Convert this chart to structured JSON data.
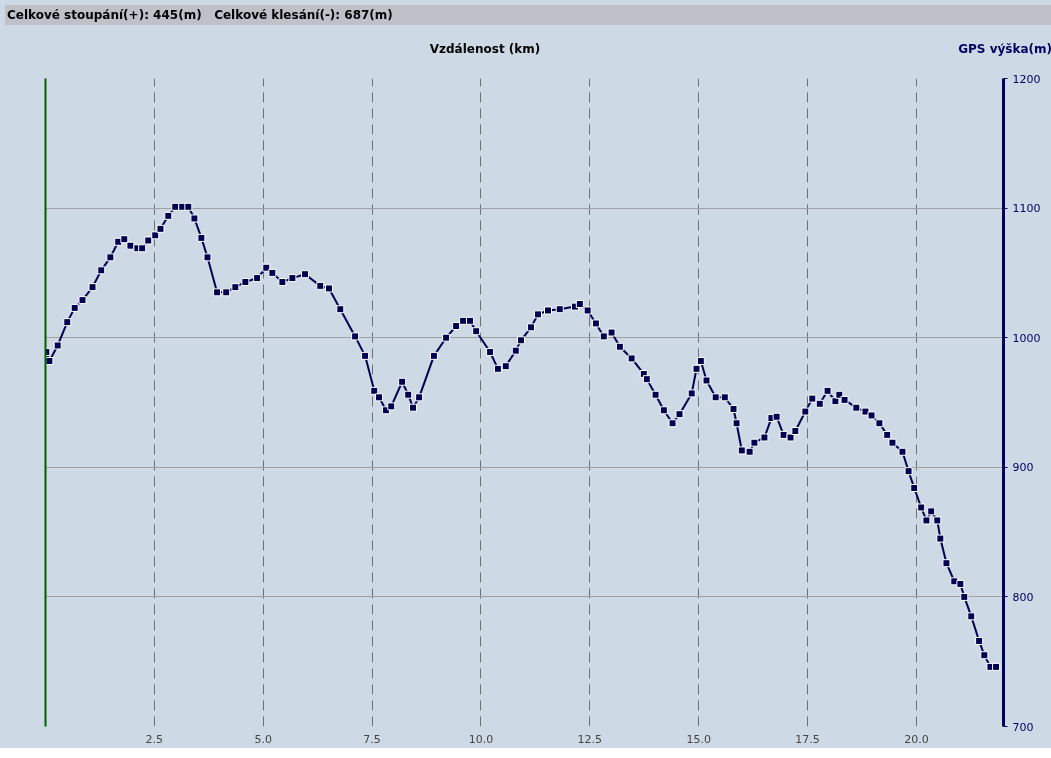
{
  "chart_data": {
    "type": "line",
    "xlabel": "Vzdálenost (km)",
    "ylabel": "GPS výška(m)",
    "annotations": [
      "Celkové stoupání(+): 445(m)",
      "Celkové klesání(-): 687(m)"
    ],
    "xlim": [
      0,
      22
    ],
    "ylim": [
      700,
      1200
    ],
    "xticks": [
      2.5,
      {
        "value": 5,
        "label": "5.0"
      },
      7.5,
      {
        "value": 10,
        "label": "10.0"
      },
      12.5,
      {
        "value": 15,
        "label": "15.0"
      },
      17.5,
      {
        "value": 20,
        "label": "20.0"
      }
    ],
    "yticks": [
      700,
      800,
      900,
      1000,
      1100,
      1200
    ],
    "grid": true,
    "marker": "square",
    "line_style": "solid",
    "series": [
      {
        "color": "#000050",
        "x": [
          0.02,
          0.09,
          0.28,
          0.5,
          0.67,
          0.85,
          1.08,
          1.28,
          1.49,
          1.67,
          1.81,
          1.95,
          2.11,
          2.22,
          2.36,
          2.52,
          2.64,
          2.82,
          2.98,
          3.14,
          3.28,
          3.42,
          3.58,
          3.72,
          3.94,
          4.15,
          4.36,
          4.59,
          4.86,
          5.07,
          5.21,
          5.44,
          5.67,
          5.96,
          6.31,
          6.51,
          6.77,
          7.11,
          7.34,
          7.55,
          7.66,
          7.82,
          7.94,
          8.19,
          8.33,
          8.44,
          8.58,
          8.92,
          9.2,
          9.43,
          9.59,
          9.75,
          9.89,
          10.21,
          10.39,
          10.57,
          10.8,
          10.92,
          11.15,
          11.31,
          11.54,
          11.81,
          12.16,
          12.27,
          12.45,
          12.64,
          12.82,
          13.0,
          13.19,
          13.46,
          13.74,
          13.81,
          14.01,
          14.2,
          14.4,
          14.56,
          14.84,
          14.95,
          15.05,
          15.18,
          15.39,
          15.6,
          15.8,
          15.87,
          15.99,
          16.17,
          16.28,
          16.51,
          16.67,
          16.79,
          16.95,
          17.11,
          17.22,
          17.45,
          17.61,
          17.78,
          17.96,
          18.14,
          18.23,
          18.35,
          18.62,
          18.83,
          18.97,
          19.15,
          19.33,
          19.45,
          19.68,
          19.82,
          19.95,
          20.11,
          20.23,
          20.34,
          20.48,
          20.55,
          20.69,
          20.87,
          21.01,
          21.1,
          21.26,
          21.44,
          21.56,
          21.7,
          21.83
        ],
        "values": [
          989,
          982,
          994,
          1012,
          1023,
          1029,
          1039,
          1052,
          1062,
          1074,
          1076,
          1071,
          1069,
          1069,
          1075,
          1079,
          1084,
          1094,
          1101,
          1101,
          1101,
          1092,
          1077,
          1062,
          1035,
          1035,
          1039,
          1043,
          1046,
          1054,
          1050,
          1043,
          1046,
          1049,
          1040,
          1038,
          1022,
          1001,
          986,
          959,
          954,
          944,
          947,
          966,
          956,
          946,
          954,
          986,
          1000,
          1009,
          1013,
          1013,
          1005,
          989,
          976,
          978,
          990,
          998,
          1008,
          1018,
          1021,
          1022,
          1024,
          1026,
          1021,
          1011,
          1001,
          1004,
          993,
          984,
          972,
          968,
          956,
          944,
          934,
          941,
          957,
          976,
          982,
          967,
          954,
          954,
          945,
          934,
          913,
          912,
          919,
          923,
          938,
          939,
          925,
          923,
          928,
          943,
          953,
          949,
          959,
          951,
          956,
          952,
          946,
          943,
          940,
          934,
          925,
          919,
          912,
          897,
          884,
          869,
          859,
          866,
          859,
          845,
          826,
          812,
          810,
          800,
          785,
          766,
          755,
          746,
          746
        ]
      }
    ]
  }
}
